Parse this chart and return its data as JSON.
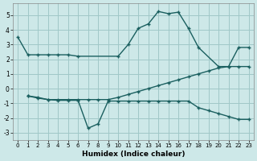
{
  "xlabel": "Humidex (Indice chaleur)",
  "xlim": [
    -0.5,
    23.5
  ],
  "ylim": [
    -3.5,
    5.8
  ],
  "yticks": [
    -3,
    -2,
    -1,
    0,
    1,
    2,
    3,
    4,
    5
  ],
  "xticks": [
    0,
    1,
    2,
    3,
    4,
    5,
    6,
    7,
    8,
    9,
    10,
    11,
    12,
    13,
    14,
    15,
    16,
    17,
    18,
    19,
    20,
    21,
    22,
    23
  ],
  "bg_color": "#cde8e8",
  "grid_color": "#a0c8c8",
  "line_color": "#1a5f5f",
  "line1_x": [
    0,
    1,
    2,
    3,
    4,
    5,
    6,
    10,
    11,
    12,
    13,
    14,
    15,
    16,
    17,
    18,
    20,
    21,
    22,
    23
  ],
  "line1_y": [
    3.5,
    2.3,
    2.3,
    2.3,
    2.3,
    2.3,
    2.2,
    2.2,
    3.0,
    4.1,
    4.4,
    5.25,
    5.1,
    5.2,
    4.1,
    2.8,
    1.5,
    1.5,
    2.8,
    2.8
  ],
  "line2_x": [
    1,
    2,
    3,
    4,
    5,
    6,
    7,
    8,
    9,
    10,
    11,
    12,
    13,
    14,
    15,
    16,
    17,
    18,
    19,
    20,
    21,
    22,
    23
  ],
  "line2_y": [
    -0.5,
    -0.6,
    -0.75,
    -0.75,
    -0.75,
    -0.75,
    -0.75,
    -0.75,
    -0.75,
    -0.6,
    -0.4,
    -0.2,
    0.0,
    0.2,
    0.4,
    0.6,
    0.8,
    1.0,
    1.2,
    1.4,
    1.5,
    1.5,
    1.5
  ],
  "line3_x": [
    1,
    2,
    3,
    4,
    5,
    6,
    7,
    8,
    9,
    10,
    11,
    12,
    13,
    14,
    15,
    16,
    17,
    18,
    19,
    20,
    21,
    22,
    23
  ],
  "line3_y": [
    -0.5,
    -0.65,
    -0.75,
    -0.8,
    -0.8,
    -0.8,
    -2.7,
    -2.4,
    -0.85,
    -0.85,
    -0.85,
    -0.85,
    -0.85,
    -0.85,
    -0.85,
    -0.85,
    -0.85,
    -1.3,
    -1.5,
    -1.7,
    -1.9,
    -2.1,
    -2.1
  ]
}
